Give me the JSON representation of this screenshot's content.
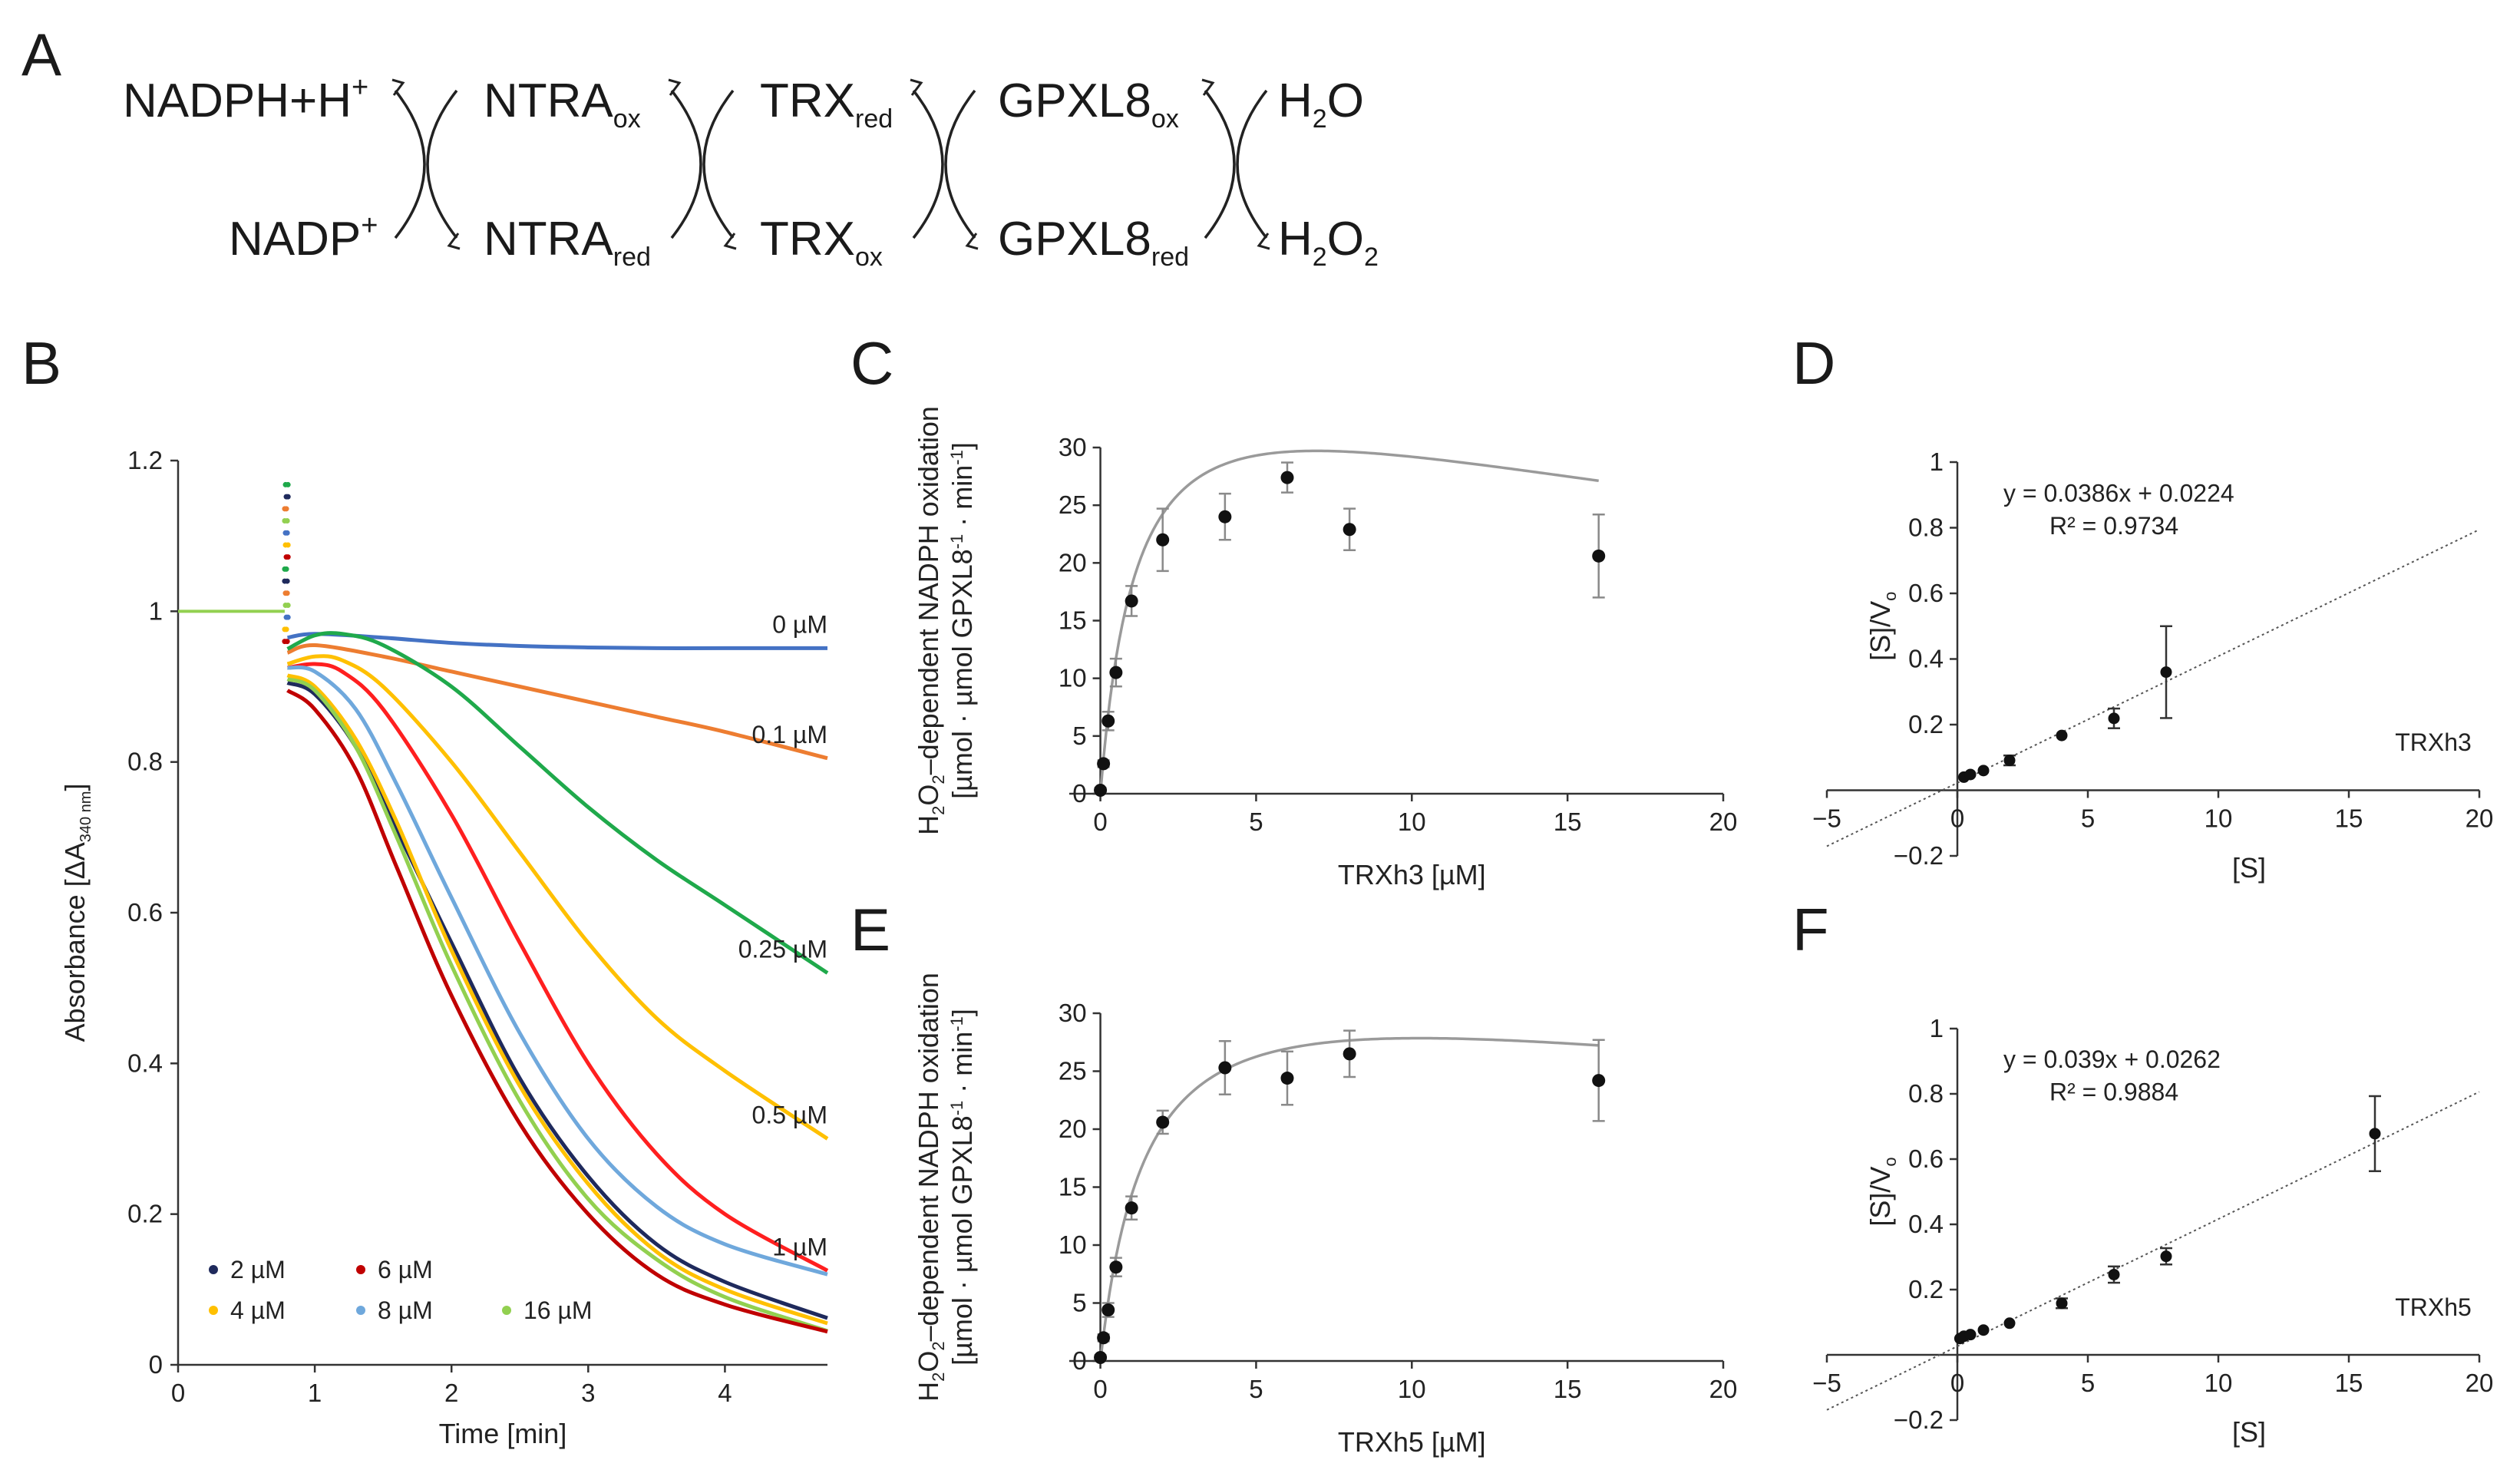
{
  "panel_labels": [
    "A",
    "B",
    "C",
    "D",
    "E",
    "F"
  ],
  "schematic": {
    "top": [
      {
        "base": "NADPH+H",
        "sup": "+",
        "sub": ""
      },
      {
        "base": "NTRA",
        "sup": "",
        "sub": "ox"
      },
      {
        "base": "TRX",
        "sup": "",
        "sub": "red"
      },
      {
        "base": "GPXL8",
        "sup": "",
        "sub": "ox"
      },
      {
        "base": "H",
        "sup": "",
        "sub": "2",
        "tail": "O"
      }
    ],
    "bottom": [
      {
        "base": "NADP",
        "sup": "+",
        "sub": ""
      },
      {
        "base": "NTRA",
        "sup": "",
        "sub": "red"
      },
      {
        "base": "TRX",
        "sup": "",
        "sub": "ox"
      },
      {
        "base": "GPXL8",
        "sup": "",
        "sub": "red"
      },
      {
        "base": "H",
        "sup": "",
        "sub": "2",
        "tail": "O",
        "sub2": "2"
      }
    ]
  },
  "chart_data": [
    {
      "panel": "B",
      "type": "line",
      "title": "",
      "xlabel": "Time [min]",
      "ylabel": "Absorbance [ΔA",
      "ylabel_sub": "340 nm",
      "ylabel_close": "]",
      "xlim": [
        0,
        4.75
      ],
      "ylim": [
        0,
        1.2
      ],
      "xticks": [
        0,
        1,
        2,
        3,
        4
      ],
      "yticks": [
        0,
        0.2,
        0.4,
        0.6,
        0.8,
        1,
        1.2
      ],
      "xtick_labels": [
        "0",
        "1",
        "2",
        "3",
        "4"
      ],
      "ytick_labels": [
        "0",
        "0.2",
        "0.4",
        "0.6",
        "0.8",
        "1",
        "1.2"
      ],
      "baseline": {
        "x": [
          0,
          0.78
        ],
        "y": [
          1,
          1
        ]
      },
      "series": [
        {
          "name": "0 µM",
          "color": "#4472C4",
          "labeled": true,
          "x": [
            0.8,
            1.0,
            1.5,
            2.0,
            2.5,
            3.0,
            3.5,
            4.0,
            4.75
          ],
          "y": [
            0.965,
            0.97,
            0.965,
            0.958,
            0.954,
            0.952,
            0.951,
            0.951,
            0.951
          ]
        },
        {
          "name": "0.1 µM",
          "color": "#ED7D31",
          "labeled": true,
          "x": [
            0.8,
            1.0,
            1.5,
            2.0,
            2.5,
            3.0,
            3.5,
            4.0,
            4.75
          ],
          "y": [
            0.945,
            0.955,
            0.94,
            0.92,
            0.9,
            0.88,
            0.86,
            0.84,
            0.805
          ]
        },
        {
          "name": "0.25 µM",
          "color": "#1FA94B",
          "labeled": true,
          "x": [
            0.8,
            1.0,
            1.2,
            1.5,
            2.0,
            2.5,
            3.0,
            3.5,
            4.0,
            4.75
          ],
          "y": [
            0.95,
            0.968,
            0.97,
            0.955,
            0.9,
            0.82,
            0.74,
            0.67,
            0.61,
            0.52
          ]
        },
        {
          "name": "0.5 µM",
          "color": "#FFC000",
          "labeled": true,
          "x": [
            0.8,
            1.0,
            1.2,
            1.5,
            2.0,
            2.5,
            3.0,
            3.5,
            4.0,
            4.75
          ],
          "y": [
            0.93,
            0.94,
            0.935,
            0.9,
            0.8,
            0.68,
            0.56,
            0.46,
            0.39,
            0.3
          ]
        },
        {
          "name": "1 µM",
          "color": "#FF1F1F",
          "labeled": true,
          "x": [
            0.8,
            1.0,
            1.2,
            1.5,
            2.0,
            2.5,
            3.0,
            3.5,
            4.0,
            4.75
          ],
          "y": [
            0.925,
            0.93,
            0.92,
            0.87,
            0.73,
            0.56,
            0.4,
            0.28,
            0.2,
            0.125
          ]
        },
        {
          "name": "8 µM",
          "color": "#6FA8DC",
          "labeled": false,
          "x": [
            0.8,
            1.0,
            1.3,
            1.6,
            2.0,
            2.5,
            3.0,
            3.5,
            4.0,
            4.75
          ],
          "y": [
            0.925,
            0.92,
            0.87,
            0.77,
            0.62,
            0.44,
            0.3,
            0.21,
            0.16,
            0.12
          ]
        },
        {
          "name": "2 µM",
          "color": "#1F2A5C",
          "labeled": false,
          "x": [
            0.8,
            1.0,
            1.3,
            1.6,
            2.0,
            2.5,
            3.0,
            3.5,
            4.0,
            4.75
          ],
          "y": [
            0.905,
            0.89,
            0.82,
            0.71,
            0.56,
            0.38,
            0.25,
            0.16,
            0.11,
            0.062
          ]
        },
        {
          "name": "4 µM",
          "color": "#FFC000",
          "labeled": false,
          "x": [
            0.8,
            1.0,
            1.3,
            1.6,
            2.0,
            2.5,
            3.0,
            3.5,
            4.0,
            4.75
          ],
          "y": [
            0.915,
            0.9,
            0.83,
            0.72,
            0.55,
            0.37,
            0.24,
            0.15,
            0.1,
            0.055
          ]
        },
        {
          "name": "16 µM",
          "color": "#92D050",
          "labeled": false,
          "x": [
            0.8,
            1.0,
            1.3,
            1.6,
            2.0,
            2.5,
            3.0,
            3.5,
            4.0,
            4.75
          ],
          "y": [
            0.91,
            0.895,
            0.82,
            0.7,
            0.53,
            0.35,
            0.22,
            0.14,
            0.09,
            0.045
          ]
        },
        {
          "name": "6 µM",
          "color": "#C00000",
          "labeled": false,
          "x": [
            0.8,
            1.0,
            1.3,
            1.6,
            2.0,
            2.5,
            3.0,
            3.5,
            4.0,
            4.75
          ],
          "y": [
            0.895,
            0.87,
            0.79,
            0.66,
            0.49,
            0.32,
            0.2,
            0.12,
            0.08,
            0.044
          ]
        }
      ],
      "legend": [
        {
          "name": "2 µM",
          "color": "#1F2A5C"
        },
        {
          "name": "6 µM",
          "color": "#C00000"
        },
        {
          "name": "4 µM",
          "color": "#FFC000"
        },
        {
          "name": "8 µM",
          "color": "#6FA8DC"
        },
        {
          "name": "16 µM",
          "color": "#92D050"
        }
      ]
    },
    {
      "panel": "C",
      "type": "scatter",
      "title": "",
      "xlabel": "TRXh3 [µM]",
      "ylabel_line1_pre": "H",
      "ylabel_line1_sub1": "2",
      "ylabel_line1_mid": "O",
      "ylabel_line1_sub2": "2",
      "ylabel_line1_post": "–dependent NADPH oxidation",
      "ylabel_line2_pre": "[µmol · µmol GPXL8",
      "ylabel_line2_sup1": "-1",
      "ylabel_line2_mid": " · min",
      "ylabel_line2_sup2": "-1",
      "ylabel_line2_post": "]",
      "xlim": [
        -1,
        20
      ],
      "ylim": [
        0,
        30
      ],
      "xticks": [
        0,
        5,
        10,
        15,
        20
      ],
      "yticks": [
        0,
        5,
        10,
        15,
        20,
        25,
        30
      ],
      "xtick_labels": [
        "0",
        "5",
        "10",
        "15",
        "20"
      ],
      "ytick_labels": [
        "0",
        "5",
        "10",
        "15",
        "20",
        "25",
        "30"
      ],
      "x": [
        0,
        0.1,
        0.25,
        0.5,
        1,
        2,
        4,
        6,
        8,
        16
      ],
      "y": [
        0.3,
        2.6,
        6.3,
        10.5,
        16.7,
        22.0,
        24.0,
        27.4,
        22.9,
        20.6
      ],
      "err": [
        0.2,
        0.3,
        0.8,
        1.2,
        1.3,
        2.7,
        2.0,
        1.3,
        1.8,
        3.6
      ],
      "fit": {
        "vmax": 40,
        "km": 1.2,
        "ki": 40
      }
    },
    {
      "panel": "D",
      "type": "scatter",
      "title": "",
      "xlabel": "[S]",
      "ylabel": "[S]/V",
      "ylabel_sub": "o",
      "xlim": [
        -5,
        20
      ],
      "ylim": [
        -0.2,
        1
      ],
      "xticks": [
        -5,
        0,
        5,
        10,
        15,
        20
      ],
      "yticks": [
        -0.2,
        0.2,
        0.4,
        0.6,
        0.8,
        1
      ],
      "xtick_labels": [
        "−5",
        "0",
        "5",
        "10",
        "15",
        "20"
      ],
      "ytick_labels": [
        "−0.2",
        "0.2",
        "0.4",
        "0.6",
        "0.8",
        "1"
      ],
      "equation": "y = 0.0386x + 0.0224",
      "r2": "R² = 0.9734",
      "tag": "TRXh3",
      "x": [
        0.25,
        0.5,
        1,
        2,
        4,
        6,
        8
      ],
      "y": [
        0.04,
        0.048,
        0.06,
        0.091,
        0.167,
        0.219,
        0.36
      ],
      "err": [
        0.005,
        0.005,
        0.008,
        0.015,
        0.01,
        0.03,
        0.14
      ],
      "slope": 0.0386,
      "intercept": 0.0224
    },
    {
      "panel": "E",
      "type": "scatter",
      "title": "",
      "xlabel": "TRXh5 [µM]",
      "ylabel_line1_pre": "H",
      "ylabel_line1_sub1": "2",
      "ylabel_line1_mid": "O",
      "ylabel_line1_sub2": "2",
      "ylabel_line1_post": "–dependent NADPH oxidation",
      "ylabel_line2_pre": "[µmol · µmol GPXL8",
      "ylabel_line2_sup1": "-1",
      "ylabel_line2_mid": " · min",
      "ylabel_line2_sup2": "-1",
      "ylabel_line2_post": "]",
      "xlim": [
        -1,
        20
      ],
      "ylim": [
        0,
        30
      ],
      "xticks": [
        0,
        5,
        10,
        15,
        20
      ],
      "yticks": [
        0,
        5,
        10,
        15,
        20,
        25,
        30
      ],
      "xtick_labels": [
        "0",
        "5",
        "10",
        "15",
        "20"
      ],
      "ytick_labels": [
        "0",
        "5",
        "10",
        "15",
        "20",
        "25",
        "30"
      ],
      "x": [
        0,
        0.1,
        0.25,
        0.5,
        1,
        2,
        4,
        6,
        8,
        16
      ],
      "y": [
        0.3,
        2.0,
        4.4,
        8.1,
        13.2,
        20.6,
        25.3,
        24.4,
        26.5,
        24.2
      ],
      "err": [
        0.2,
        0.3,
        0.6,
        0.8,
        1.0,
        1.0,
        2.3,
        2.3,
        2.0,
        3.5
      ],
      "fit": {
        "vmax": 36,
        "km": 1.5,
        "ki": 70
      }
    },
    {
      "panel": "F",
      "type": "scatter",
      "title": "",
      "xlabel": "[S]",
      "ylabel": "[S]/V",
      "ylabel_sub": "o",
      "xlim": [
        -5,
        20
      ],
      "ylim": [
        -0.2,
        1
      ],
      "xticks": [
        -5,
        0,
        5,
        10,
        15,
        20
      ],
      "yticks": [
        -0.2,
        0.2,
        0.4,
        0.6,
        0.8,
        1
      ],
      "xtick_labels": [
        "−5",
        "0",
        "5",
        "10",
        "15",
        "20"
      ],
      "ytick_labels": [
        "−0.2",
        "0.2",
        "0.4",
        "0.6",
        "0.8",
        "1"
      ],
      "equation": "y = 0.039x + 0.0262",
      "r2": "R² = 0.9884",
      "tag": "TRXh5",
      "x": [
        0.1,
        0.25,
        0.5,
        1,
        2,
        4,
        6,
        8,
        16
      ],
      "y": [
        0.05,
        0.057,
        0.062,
        0.076,
        0.097,
        0.158,
        0.246,
        0.302,
        0.678
      ],
      "err": [
        0.005,
        0.005,
        0.006,
        0.008,
        0.01,
        0.015,
        0.025,
        0.025,
        0.115
      ],
      "slope": 0.039,
      "intercept": 0.0262
    }
  ]
}
